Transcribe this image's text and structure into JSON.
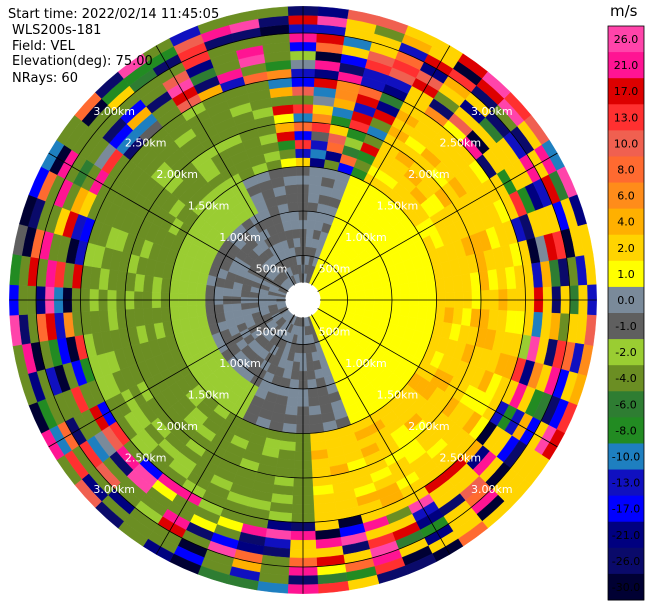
{
  "header": {
    "start_time": "Start time: 2022/02/14 11:45:05",
    "instrument": "WLS200s-181",
    "field": "Field: VEL",
    "elevation": "Elevation(deg): 75.00",
    "nrays": "NRays: 60"
  },
  "colorbar": {
    "unit": "m/s",
    "ticks": [
      "26.0",
      "21.0",
      "17.0",
      "13.0",
      "10.0",
      "8.0",
      "6.0",
      "4.0",
      "2.0",
      "1.0",
      "0.0",
      "-1.0",
      "-2.0",
      "-4.0",
      "-6.0",
      "-8.0",
      "-10.0",
      "-13.0",
      "-17.0",
      "-21.0",
      "-26.0",
      "-30.0"
    ],
    "bins": [
      {
        "min": 26,
        "max": 30,
        "color": "#ff44aa"
      },
      {
        "min": 21,
        "max": 26,
        "color": "#ff1493"
      },
      {
        "min": 17,
        "max": 21,
        "color": "#dd0000"
      },
      {
        "min": 13,
        "max": 17,
        "color": "#ff3030"
      },
      {
        "min": 10,
        "max": 13,
        "color": "#f06050"
      },
      {
        "min": 8,
        "max": 10,
        "color": "#ff6a30"
      },
      {
        "min": 6,
        "max": 8,
        "color": "#ff8c1a"
      },
      {
        "min": 4,
        "max": 6,
        "color": "#ffb000"
      },
      {
        "min": 2,
        "max": 4,
        "color": "#ffd400"
      },
      {
        "min": 1,
        "max": 2,
        "color": "#ffff00"
      },
      {
        "min": 0,
        "max": 1,
        "color": "#7a8a9a"
      },
      {
        "min": -1,
        "max": 0,
        "color": "#5f5f5f"
      },
      {
        "min": -2,
        "max": -1,
        "color": "#9acd32"
      },
      {
        "min": -4,
        "max": -2,
        "color": "#6b8e23"
      },
      {
        "min": -6,
        "max": -4,
        "color": "#2e7d32"
      },
      {
        "min": -8,
        "max": -6,
        "color": "#228b22"
      },
      {
        "min": -10,
        "max": -8,
        "color": "#1e7fc0"
      },
      {
        "min": -13,
        "max": -10,
        "color": "#1010c0"
      },
      {
        "min": -17,
        "max": -13,
        "color": "#0000ff"
      },
      {
        "min": -21,
        "max": -17,
        "color": "#000080"
      },
      {
        "min": -26,
        "max": -21,
        "color": "#0a0a6a"
      },
      {
        "min": -30,
        "max": -26,
        "color": "#000033"
      }
    ]
  },
  "chart_data": {
    "type": "heatmap",
    "projection": "polar PPI",
    "field": "VEL",
    "units": "m/s",
    "elevation_deg": 75.0,
    "n_rays": 60,
    "range_rings_km": [
      0.5,
      1.0,
      1.5,
      2.0,
      2.5,
      3.0
    ],
    "range_labels": [
      "500m",
      "1.00km",
      "1.50km",
      "2.00km",
      "2.50km",
      "3.00km"
    ],
    "max_range_km": 3.3,
    "gate_step_km": 0.1,
    "vmin": -30,
    "vmax": 30,
    "structure": "mostly receding 1-4 m/s on east side, approaching -1 to -4 m/s on west side, near-zero values inside 1.5 km, noisy values of both signs beyond 2.5 km",
    "ray_azimuths_deg": [
      0,
      6,
      12,
      18,
      24,
      30,
      36,
      42,
      48,
      54,
      60,
      66,
      72,
      78,
      84,
      90,
      96,
      102,
      108,
      114,
      120,
      126,
      132,
      138,
      144,
      150,
      156,
      162,
      168,
      174,
      180,
      186,
      192,
      198,
      204,
      210,
      216,
      222,
      228,
      234,
      240,
      246,
      252,
      258,
      264,
      270,
      276,
      282,
      288,
      294,
      300,
      306,
      312,
      318,
      324,
      330,
      336,
      342,
      348,
      354
    ]
  }
}
